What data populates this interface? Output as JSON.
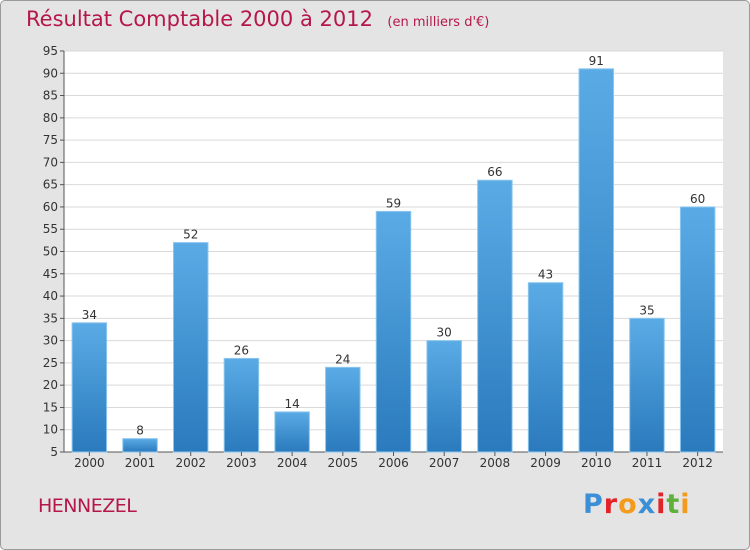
{
  "header": {
    "title": "Résultat Comptable 2000 à 2012",
    "subtitle": "(en milliers d'€)"
  },
  "footer": {
    "commune": "HENNEZEL",
    "logo_text": "Proxiti"
  },
  "colors": {
    "bar": "#5aabe5",
    "bar_dark": "#2a7abd",
    "title": "#b5174a",
    "background": "#e4e4e4",
    "plot_background": "#ffffff",
    "grid": "#d9d9d9",
    "logo": [
      "#3a8fd6",
      "#e2232a",
      "#f39b1c",
      "#3a8fd6",
      "#e2232a",
      "#5fb13b",
      "#f39b1c"
    ]
  },
  "chart_data": {
    "type": "bar",
    "title": "Résultat Comptable 2000 à 2012",
    "subtitle": "(en milliers d'€)",
    "categories": [
      "2000",
      "2001",
      "2002",
      "2003",
      "2004",
      "2005",
      "2006",
      "2007",
      "2008",
      "2009",
      "2010",
      "2011",
      "2012"
    ],
    "values": [
      34,
      8,
      52,
      26,
      14,
      24,
      59,
      30,
      66,
      43,
      91,
      35,
      60
    ],
    "data_labels": [
      "34",
      "8",
      "52",
      "26",
      "14",
      "24",
      "59",
      "30",
      "66",
      "43",
      "91",
      "35",
      "60"
    ],
    "ylim": [
      5,
      95
    ],
    "yticks": [
      5,
      10,
      15,
      20,
      25,
      30,
      35,
      40,
      45,
      50,
      55,
      60,
      65,
      70,
      75,
      80,
      85,
      90,
      95
    ],
    "xlabel": "",
    "ylabel": "",
    "grid": true,
    "legend": "none"
  }
}
